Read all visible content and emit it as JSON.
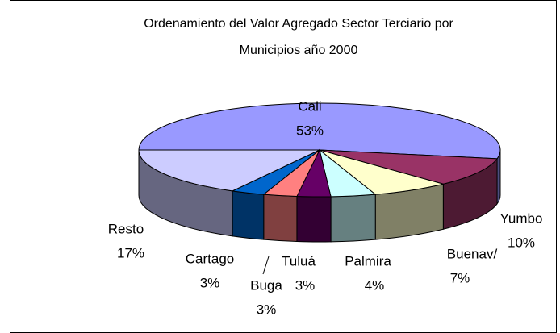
{
  "chart_data": {
    "type": "pie",
    "title": [
      "Ordenamiento del Valor Agregado Sector Terciario por",
      "Municipios año 2000"
    ],
    "categories": [
      "Cali",
      "Yumbo",
      "Buenav/",
      "Palmira",
      "Tuluá",
      "Buga",
      "Cartago",
      "Resto"
    ],
    "values": [
      53,
      10,
      7,
      4,
      3,
      3,
      3,
      17
    ],
    "value_labels": [
      "53%",
      "10%",
      "7%",
      "4%",
      "3%",
      "3%",
      "3%",
      "17%"
    ],
    "colors": [
      "#9999ff",
      "#993366",
      "#ffffcc",
      "#ccffff",
      "#660066",
      "#ff8080",
      "#0066cc",
      "#ccccff"
    ]
  }
}
